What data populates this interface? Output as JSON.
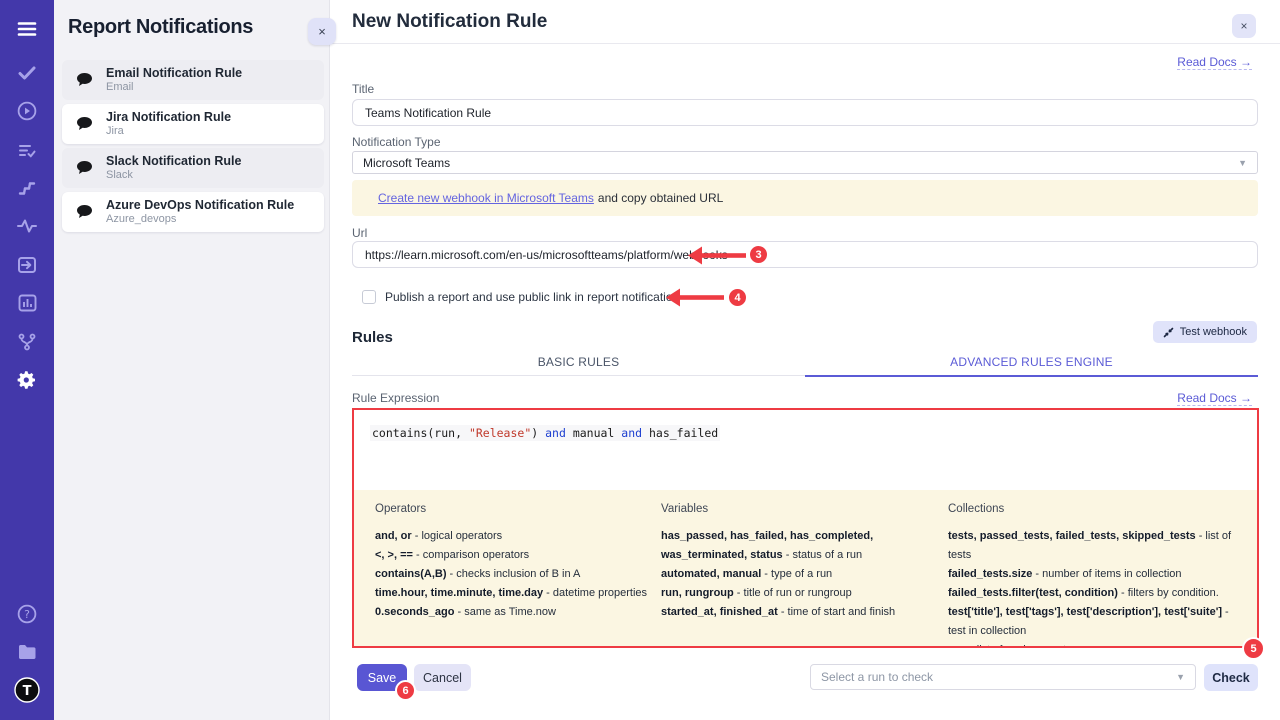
{
  "sidebar": {
    "icons": [
      "menu-icon",
      "check-icon",
      "play-circle-icon",
      "list-check-icon",
      "steps-icon",
      "pulse-icon",
      "sign-in-icon",
      "bar-chart-icon",
      "branch-icon",
      "settings-gear-icon",
      "help-icon",
      "folder-icon",
      "profile-avatar"
    ],
    "active_icon": "settings-gear-icon",
    "avatar_letter": "T"
  },
  "panel": {
    "title": "Report Notifications",
    "close_label": "×",
    "items": [
      {
        "title": "Email Notification Rule",
        "subtitle": "Email"
      },
      {
        "title": "Jira Notification Rule",
        "subtitle": "Jira"
      },
      {
        "title": "Slack Notification Rule",
        "subtitle": "Slack"
      },
      {
        "title": "Azure DevOps Notification Rule",
        "subtitle": "Azure_devops"
      }
    ]
  },
  "main": {
    "title": "New Notification Rule",
    "close_label": "×",
    "read_docs": "Read Docs →",
    "form": {
      "title_label": "Title",
      "title_value": "Teams Notification Rule",
      "type_label": "Notification Type",
      "type_value": "Microsoft Teams",
      "info_link": "Create new webhook in Microsoft Teams",
      "info_rest": "and copy obtained URL",
      "url_label": "Url",
      "url_value": "https://learn.microsoft.com/en-us/microsoftteams/platform/webhooks",
      "publish_label": "Publish a report and use public link in report notification"
    },
    "rules": {
      "heading": "Rules",
      "test_webhook_label": "Test webhook",
      "tabs": [
        {
          "label": "BASIC RULES"
        },
        {
          "label": "ADVANCED RULES ENGINE"
        }
      ],
      "active_tab_index": 1,
      "expression_label": "Rule Expression",
      "read_docs": "Read Docs →",
      "expression_text": "contains(run, \"Release\") and manual and has_failed",
      "expression_segments": [
        {
          "t": "contains(run, "
        },
        {
          "t": "\"Release\"",
          "c": "tok-str"
        },
        {
          "t": ") "
        },
        {
          "t": "and",
          "c": "tok-kw"
        },
        {
          "t": " manual "
        },
        {
          "t": "and",
          "c": "tok-kw"
        },
        {
          "t": " has_failed"
        }
      ],
      "help_columns": [
        {
          "title": "Operators",
          "entries": [
            [
              {
                "t": "and, ",
                "b": true
              },
              {
                "t": "or",
                "b": true
              },
              {
                "t": " - logical operators"
              }
            ],
            [
              {
                "t": "<, ",
                "b": true
              },
              {
                "t": ">, ",
                "b": true
              },
              {
                "t": "==",
                "b": true
              },
              {
                "t": " - comparison operators"
              }
            ],
            [
              {
                "t": "contains(A,B)",
                "b": true
              },
              {
                "t": " - checks inclusion of B in A"
              }
            ],
            [
              {
                "t": "time.hour, ",
                "b": true
              },
              {
                "t": "time.minute, ",
                "b": true
              },
              {
                "t": "time.day",
                "b": true
              },
              {
                "t": " - datetime properties"
              }
            ],
            [
              {
                "t": "0.seconds_ago",
                "b": true
              },
              {
                "t": " - same as Time.now"
              }
            ]
          ]
        },
        {
          "title": "Variables",
          "entries": [
            [
              {
                "t": "has_passed, ",
                "b": true
              },
              {
                "t": "has_failed, ",
                "b": true
              },
              {
                "t": "has_completed, ",
                "b": true
              },
              {
                "t": "was_terminated, ",
                "b": true
              },
              {
                "t": "status",
                "b": true
              },
              {
                "t": " - status of a run"
              }
            ],
            [
              {
                "t": "automated, ",
                "b": true
              },
              {
                "t": "manual",
                "b": true
              },
              {
                "t": " - type of a run"
              }
            ],
            [
              {
                "t": "run, ",
                "b": true
              },
              {
                "t": "rungroup",
                "b": true
              },
              {
                "t": " - title of run or rungroup"
              }
            ],
            [
              {
                "t": "started_at, ",
                "b": true
              },
              {
                "t": "finished_at",
                "b": true
              },
              {
                "t": " - time of start and finish"
              }
            ]
          ]
        },
        {
          "title": "Collections",
          "entries": [
            [
              {
                "t": "tests, ",
                "b": true
              },
              {
                "t": "passed_tests, ",
                "b": true
              },
              {
                "t": "failed_tests, ",
                "b": true
              },
              {
                "t": "skipped_tests",
                "b": true
              },
              {
                "t": " - list of tests"
              }
            ],
            [
              {
                "t": "failed_tests.size",
                "b": true
              },
              {
                "t": " - number of items in collection"
              }
            ],
            [
              {
                "t": "failed_tests.filter(test, condition)",
                "b": true
              },
              {
                "t": " - filters by condition."
              }
            ],
            [
              {
                "t": "test['title'], ",
                "b": true
              },
              {
                "t": "test['tags'], ",
                "b": true
              },
              {
                "t": "test['description'], ",
                "b": true
              },
              {
                "t": "test['suite']",
                "b": true
              },
              {
                "t": " - test in collection"
              }
            ],
            [
              {
                "t": "env",
                "b": true
              },
              {
                "t": " - list of environments"
              }
            ]
          ]
        }
      ]
    },
    "footer": {
      "save_label": "Save",
      "cancel_label": "Cancel",
      "run_select_placeholder": "Select a run to check",
      "check_label": "Check"
    }
  },
  "annotations": {
    "badge3": "3",
    "badge4": "4",
    "badge5": "5",
    "badge6": "6",
    "arrow_color": "#ee3b43"
  }
}
